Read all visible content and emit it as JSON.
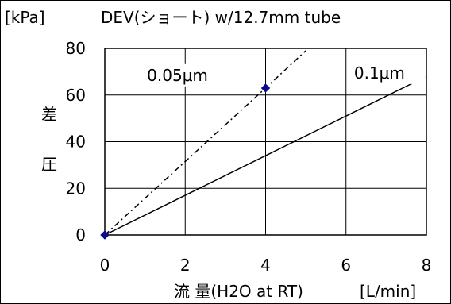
{
  "chart_data": {
    "type": "line",
    "unit_label": "[kPa]",
    "title": "DEV(ショート)  w/12.7mm tube",
    "xlabel": "流  量(H2O at RT)",
    "xunit": "[L/min]",
    "ylabel": "差\n圧",
    "ylabel_chars": [
      "差",
      "圧"
    ],
    "xlim": [
      0,
      8
    ],
    "ylim": [
      0,
      80
    ],
    "xticks": [
      0,
      2,
      4,
      6,
      8
    ],
    "yticks": [
      0,
      20,
      40,
      60,
      80
    ],
    "grid": true,
    "series": [
      {
        "name": "0.05μm",
        "style": "dash-dot",
        "color": "#000000",
        "points": [
          [
            0,
            0
          ],
          [
            4,
            63
          ],
          [
            5.0,
            79
          ]
        ]
      },
      {
        "name": "0.1μm",
        "style": "solid",
        "color": "#000000",
        "points": [
          [
            0,
            0
          ],
          [
            8,
            68
          ]
        ]
      }
    ],
    "markers": [
      {
        "x": 0,
        "y": 0,
        "color": "#0a0a8a"
      },
      {
        "x": 4,
        "y": 63,
        "color": "#0a0a8a"
      }
    ]
  }
}
